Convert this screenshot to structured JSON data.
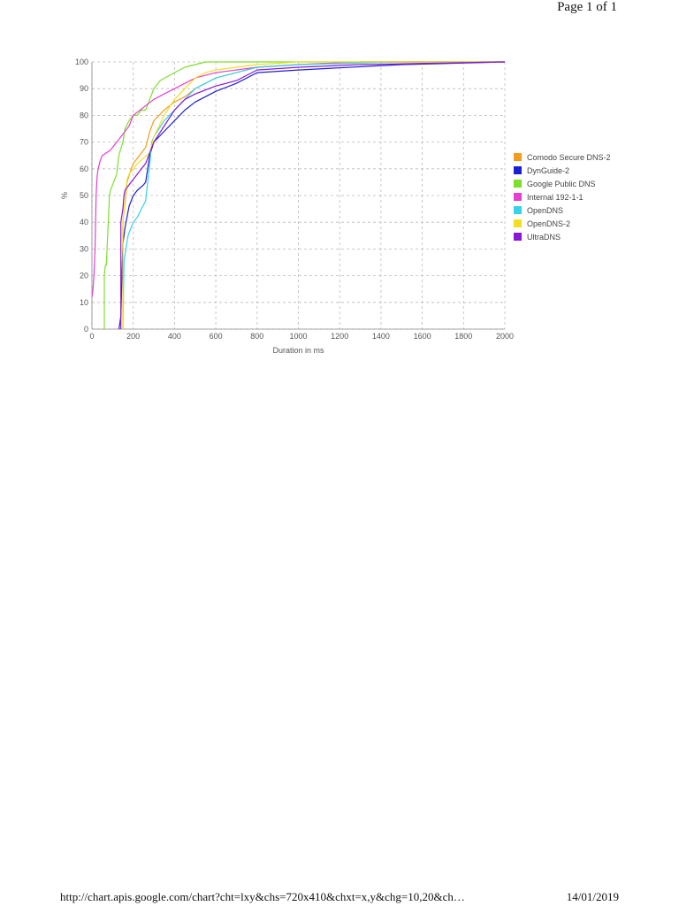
{
  "page": {
    "header": "Page 1 of 1"
  },
  "footer": {
    "url": "http://chart.apis.google.com/chart?cht=lxy&chs=720x410&chxt=x,y&chg=10,20&ch…",
    "date": "14/01/2019"
  },
  "chart_data": {
    "type": "line",
    "xlabel": "Duration in ms",
    "ylabel": "%",
    "xlim": [
      0,
      2000
    ],
    "ylim": [
      0,
      100
    ],
    "xticks": [
      0,
      200,
      400,
      600,
      800,
      1000,
      1200,
      1400,
      1600,
      1800,
      2000
    ],
    "yticks": [
      0,
      10,
      20,
      30,
      40,
      50,
      60,
      70,
      80,
      90,
      100
    ],
    "grid": true,
    "legend_position": "right",
    "series": [
      {
        "name": "Comodo Secure DNS-2",
        "color": "#f39c1f",
        "x": [
          150,
          150,
          160,
          165,
          170,
          190,
          200,
          220,
          240,
          260,
          280,
          300,
          350,
          400,
          450,
          500,
          600,
          700,
          800,
          1000,
          1300,
          2000
        ],
        "y": [
          0,
          40,
          47,
          50,
          55,
          60,
          62,
          64,
          66,
          68,
          74,
          78,
          82,
          85,
          87,
          90,
          94,
          96,
          98,
          99,
          100,
          100
        ]
      },
      {
        "name": "DynGuide-2",
        "color": "#1c1fd1",
        "x": [
          130,
          135,
          140,
          150,
          160,
          170,
          180,
          200,
          220,
          250,
          260,
          280,
          300,
          350,
          400,
          450,
          500,
          600,
          700,
          800,
          1000,
          1500,
          2000
        ],
        "y": [
          0,
          2,
          5,
          32,
          38,
          42,
          46,
          50,
          52,
          54,
          55,
          65,
          70,
          74,
          78,
          82,
          85,
          89,
          92,
          96,
          97,
          99,
          100
        ]
      },
      {
        "name": "Google Public DNS",
        "color": "#7ddf2c",
        "x": [
          60,
          60,
          65,
          70,
          85,
          90,
          120,
          130,
          150,
          160,
          180,
          200,
          220,
          240,
          260,
          280,
          300,
          330,
          400,
          450,
          500,
          550,
          800,
          2000
        ],
        "y": [
          0,
          20,
          24,
          24,
          50,
          52,
          58,
          65,
          70,
          75,
          78,
          80,
          80,
          82,
          82,
          86,
          90,
          93,
          96,
          98,
          99,
          100,
          100,
          100
        ]
      },
      {
        "name": "Internal 192-1-1",
        "color": "#e43fd0",
        "x": [
          0,
          5,
          10,
          15,
          20,
          25,
          30,
          40,
          50,
          70,
          90,
          100,
          120,
          140,
          160,
          180,
          200,
          250,
          300,
          350,
          400,
          450,
          500,
          600,
          800,
          1000,
          1300,
          2000
        ],
        "y": [
          12,
          15,
          20,
          30,
          50,
          57,
          60,
          63,
          65,
          66,
          67,
          68,
          70,
          72,
          74,
          76,
          80,
          83,
          86,
          88,
          90,
          92,
          94,
          96,
          98,
          99,
          100,
          100
        ]
      },
      {
        "name": "OpenDNS",
        "color": "#35d2ea",
        "x": [
          150,
          155,
          160,
          175,
          180,
          200,
          220,
          240,
          260,
          280,
          290,
          300,
          350,
          400,
          450,
          500,
          550,
          600,
          700,
          800,
          1000,
          1500,
          2000
        ],
        "y": [
          0,
          25,
          28,
          35,
          36,
          40,
          42,
          45,
          48,
          62,
          70,
          72,
          78,
          82,
          86,
          90,
          92,
          94,
          96,
          98,
          99,
          100,
          100
        ]
      },
      {
        "name": "OpenDNS-2",
        "color": "#f2df22",
        "x": [
          150,
          150,
          160,
          165,
          170,
          180,
          200,
          220,
          250,
          280,
          300,
          350,
          400,
          450,
          500,
          550,
          600,
          700,
          800,
          1000,
          2000
        ],
        "y": [
          0,
          40,
          48,
          52,
          56,
          58,
          60,
          62,
          64,
          66,
          72,
          80,
          86,
          90,
          94,
          96,
          97,
          98,
          99,
          100,
          100
        ]
      },
      {
        "name": "UltraDNS",
        "color": "#8a18d8",
        "x": [
          140,
          140,
          150,
          155,
          160,
          180,
          200,
          220,
          240,
          260,
          280,
          300,
          350,
          400,
          450,
          500,
          600,
          700,
          800,
          1000,
          1300,
          2000
        ],
        "y": [
          0,
          40,
          45,
          50,
          52,
          54,
          56,
          58,
          60,
          62,
          66,
          70,
          76,
          82,
          86,
          88,
          91,
          93,
          97,
          98,
          99,
          100
        ]
      }
    ]
  }
}
